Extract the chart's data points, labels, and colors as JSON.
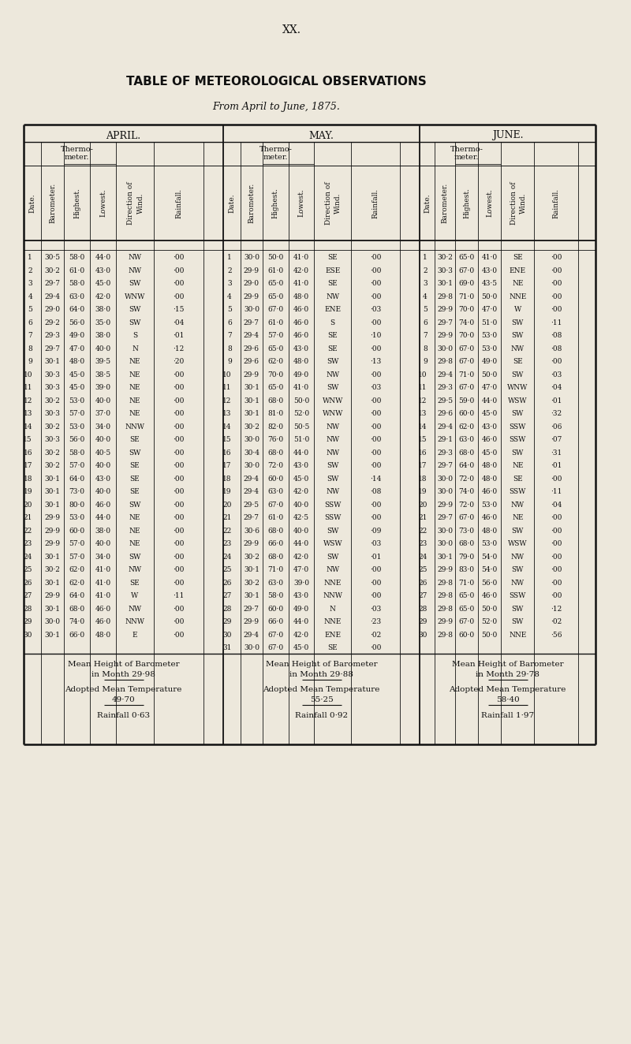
{
  "title_roman": "XX.",
  "title_main": "TABLE OF METEOROLOGICAL OBSERVATIONS",
  "title_sub": "From April to June, 1875.",
  "bg_color": "#ede8dc",
  "text_color": "#111111",
  "april_data": [
    [
      1,
      "30·5",
      "58·0",
      "44·0",
      "NW",
      "·00"
    ],
    [
      2,
      "30·2",
      "61·0",
      "43·0",
      "NW",
      "·00"
    ],
    [
      3,
      "29·7",
      "58·0",
      "45·0",
      "SW",
      "·00"
    ],
    [
      4,
      "29·4",
      "63·0",
      "42·0",
      "WNW",
      "·00"
    ],
    [
      5,
      "29·0",
      "64·0",
      "38·0",
      "SW",
      "·15"
    ],
    [
      6,
      "29·2",
      "56·0",
      "35·0",
      "SW",
      "·04"
    ],
    [
      7,
      "29·3",
      "49·0",
      "38·0",
      "S",
      "·01"
    ],
    [
      8,
      "29·7",
      "47·0",
      "40·0",
      "N",
      "·12"
    ],
    [
      9,
      "30·1",
      "48·0",
      "39·5",
      "NE",
      "·20"
    ],
    [
      10,
      "30·3",
      "45·0",
      "38·5",
      "NE",
      "·00"
    ],
    [
      11,
      "30·3",
      "45·0",
      "39·0",
      "NE",
      "·00"
    ],
    [
      12,
      "30·2",
      "53·0",
      "40·0",
      "NE",
      "·00"
    ],
    [
      13,
      "30·3",
      "57·0",
      "37·0",
      "NE",
      "·00"
    ],
    [
      14,
      "30·2",
      "53·0",
      "34·0",
      "NNW",
      "·00"
    ],
    [
      15,
      "30·3",
      "56·0",
      "40·0",
      "SE",
      "·00"
    ],
    [
      16,
      "30·2",
      "58·0",
      "40·5",
      "SW",
      "·00"
    ],
    [
      17,
      "30·2",
      "57·0",
      "40·0",
      "SE",
      "·00"
    ],
    [
      18,
      "30·1",
      "64·0",
      "43·0",
      "SE",
      "·00"
    ],
    [
      19,
      "30·1",
      "73·0",
      "40·0",
      "SE",
      "·00"
    ],
    [
      20,
      "30·1",
      "80·0",
      "46·0",
      "SW",
      "·00"
    ],
    [
      21,
      "29·9",
      "53·0",
      "44·0",
      "NE",
      "·00"
    ],
    [
      22,
      "29·9",
      "60·0",
      "38·0",
      "NE",
      "·00"
    ],
    [
      23,
      "29·9",
      "57·0",
      "40·0",
      "NE",
      "·00"
    ],
    [
      24,
      "30·1",
      "57·0",
      "34·0",
      "SW",
      "·00"
    ],
    [
      25,
      "30·2",
      "62·0",
      "41·0",
      "NW",
      "·00"
    ],
    [
      26,
      "30·1",
      "62·0",
      "41·0",
      "SE",
      "·00"
    ],
    [
      27,
      "29·9",
      "64·0",
      "41·0",
      "W",
      "·11"
    ],
    [
      28,
      "30·1",
      "68·0",
      "46·0",
      "NW",
      "·00"
    ],
    [
      29,
      "30·0",
      "74·0",
      "46·0",
      "NNW",
      "·00"
    ],
    [
      30,
      "30·1",
      "66·0",
      "48·0",
      "E",
      "·00"
    ]
  ],
  "may_data": [
    [
      1,
      "30·0",
      "50·0",
      "41·0",
      "SE",
      "·00"
    ],
    [
      2,
      "29·9",
      "61·0",
      "42·0",
      "ESE",
      "·00"
    ],
    [
      3,
      "29·0",
      "65·0",
      "41·0",
      "SE",
      "·00"
    ],
    [
      4,
      "29·9",
      "65·0",
      "48·0",
      "NW",
      "·00"
    ],
    [
      5,
      "30·0",
      "67·0",
      "46·0",
      "ENE",
      "·03"
    ],
    [
      6,
      "29·7",
      "61·0",
      "46·0",
      "S",
      "·00"
    ],
    [
      7,
      "29·4",
      "57·0",
      "46·0",
      "SE",
      "·10"
    ],
    [
      8,
      "29·6",
      "65·0",
      "43·0",
      "SE",
      "·00"
    ],
    [
      9,
      "29·6",
      "62·0",
      "48·0",
      "SW",
      "·13"
    ],
    [
      10,
      "29·9",
      "70·0",
      "49·0",
      "NW",
      "·00"
    ],
    [
      11,
      "30·1",
      "65·0",
      "41·0",
      "SW",
      "·03"
    ],
    [
      12,
      "30·1",
      "68·0",
      "50·0",
      "WNW",
      "·00"
    ],
    [
      13,
      "30·1",
      "81·0",
      "52·0",
      "WNW",
      "·00"
    ],
    [
      14,
      "30·2",
      "82·0",
      "50·5",
      "NW",
      "·00"
    ],
    [
      15,
      "30·0",
      "76·0",
      "51·0",
      "NW",
      "·00"
    ],
    [
      16,
      "30·4",
      "68·0",
      "44·0",
      "NW",
      "·00"
    ],
    [
      17,
      "30·0",
      "72·0",
      "43·0",
      "SW",
      "·00"
    ],
    [
      18,
      "29·4",
      "60·0",
      "45·0",
      "SW",
      "·14"
    ],
    [
      19,
      "29·4",
      "63·0",
      "42·0",
      "NW",
      "·08"
    ],
    [
      20,
      "29·5",
      "67·0",
      "40·0",
      "SSW",
      "·00"
    ],
    [
      21,
      "29·7",
      "61·0",
      "42·5",
      "SSW",
      "·00"
    ],
    [
      22,
      "30·6",
      "68·0",
      "40·0",
      "SW",
      "·09"
    ],
    [
      23,
      "29·9",
      "66·0",
      "44·0",
      "WSW",
      "·03"
    ],
    [
      24,
      "30·2",
      "68·0",
      "42·0",
      "SW",
      "·01"
    ],
    [
      25,
      "30·1",
      "71·0",
      "47·0",
      "NW",
      "·00"
    ],
    [
      26,
      "30·2",
      "63·0",
      "39·0",
      "NNE",
      "·00"
    ],
    [
      27,
      "30·1",
      "58·0",
      "43·0",
      "NNW",
      "·00"
    ],
    [
      28,
      "29·7",
      "60·0",
      "49·0",
      "N",
      "·03"
    ],
    [
      29,
      "29·9",
      "66·0",
      "44·0",
      "NNE",
      "·23"
    ],
    [
      30,
      "29·4",
      "67·0",
      "42·0",
      "ENE",
      "·02"
    ],
    [
      31,
      "30·0",
      "67·0",
      "45·0",
      "SE",
      "·00"
    ]
  ],
  "june_data": [
    [
      1,
      "30·2",
      "65·0",
      "41·0",
      "SE",
      "·00"
    ],
    [
      2,
      "30·3",
      "67·0",
      "43·0",
      "ENE",
      "·00"
    ],
    [
      3,
      "30·1",
      "69·0",
      "43·5",
      "NE",
      "·00"
    ],
    [
      4,
      "29·8",
      "71·0",
      "50·0",
      "NNE",
      "·00"
    ],
    [
      5,
      "29·9",
      "70·0",
      "47·0",
      "W",
      "·00"
    ],
    [
      6,
      "29·7",
      "74·0",
      "51·0",
      "SW",
      "·11"
    ],
    [
      7,
      "29·9",
      "70·0",
      "53·0",
      "SW",
      "·08"
    ],
    [
      8,
      "30·0",
      "67·0",
      "53·0",
      "NW",
      "·08"
    ],
    [
      9,
      "29·8",
      "67·0",
      "49·0",
      "SE",
      "·00"
    ],
    [
      10,
      "29·4",
      "71·0",
      "50·0",
      "SW",
      "·03"
    ],
    [
      11,
      "29·3",
      "67·0",
      "47·0",
      "WNW",
      "·04"
    ],
    [
      12,
      "29·5",
      "59·0",
      "44·0",
      "WSW",
      "·01"
    ],
    [
      13,
      "29·6",
      "60·0",
      "45·0",
      "SW",
      "·32"
    ],
    [
      14,
      "29·4",
      "62·0",
      "43·0",
      "SSW",
      "·06"
    ],
    [
      15,
      "29·1",
      "63·0",
      "46·0",
      "SSW",
      "·07"
    ],
    [
      16,
      "29·3",
      "68·0",
      "45·0",
      "SW",
      "·31"
    ],
    [
      17,
      "29·7",
      "64·0",
      "48·0",
      "NE",
      "·01"
    ],
    [
      18,
      "30·0",
      "72·0",
      "48·0",
      "SE",
      "·00"
    ],
    [
      19,
      "30·0",
      "74·0",
      "46·0",
      "SSW",
      "·11"
    ],
    [
      20,
      "29·9",
      "72·0",
      "53·0",
      "NW",
      "·04"
    ],
    [
      21,
      "29·7",
      "67·0",
      "46·0",
      "NE",
      "·00"
    ],
    [
      22,
      "30·0",
      "73·0",
      "48·0",
      "SW",
      "·00"
    ],
    [
      23,
      "30·0",
      "68·0",
      "53·0",
      "WSW",
      "·00"
    ],
    [
      24,
      "30·1",
      "79·0",
      "54·0",
      "NW",
      "·00"
    ],
    [
      25,
      "29·9",
      "83·0",
      "54·0",
      "SW",
      "·00"
    ],
    [
      26,
      "29·8",
      "71·0",
      "56·0",
      "NW",
      "·00"
    ],
    [
      27,
      "29·8",
      "65·0",
      "46·0",
      "SSW",
      "·00"
    ],
    [
      28,
      "29·8",
      "65·0",
      "50·0",
      "SW",
      "·12"
    ],
    [
      29,
      "29·9",
      "67·0",
      "52·0",
      "SW",
      "·02"
    ],
    [
      30,
      "29·8",
      "60·0",
      "50·0",
      "NNE",
      "·56"
    ]
  ],
  "april_summary": {
    "mean_barometer": "29·98",
    "mean_temp": "49·70",
    "rainfall": "0·63"
  },
  "may_summary": {
    "mean_barometer": "29·88",
    "mean_temp": "55·25",
    "rainfall": "0·92"
  },
  "june_summary": {
    "mean_barometer": "29·78",
    "mean_temp": "58·40",
    "rainfall": "1·97"
  }
}
